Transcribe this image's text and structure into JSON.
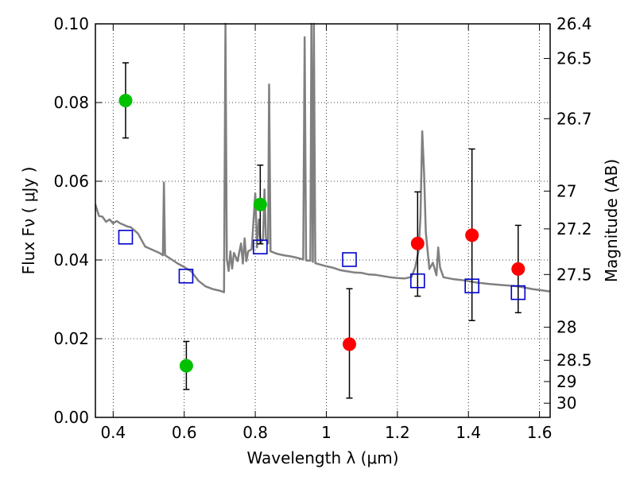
{
  "chart_data": {
    "type": "scatter",
    "xlabel": "Wavelength  λ (μm)",
    "ylabel": "Flux  Fν  ( μJy )",
    "y2label": "Magnitude (AB)",
    "xlim": [
      0.35,
      1.63
    ],
    "ylim": [
      0.0,
      0.1
    ],
    "grid": true,
    "x_ticks": [
      0.4,
      0.6,
      0.8,
      1.0,
      1.2,
      1.4,
      1.6
    ],
    "x_tick_labels": [
      "0.4",
      "0.6",
      "0.8",
      "1",
      "1.2",
      "1.4",
      "1.6"
    ],
    "y_ticks": [
      0.0,
      0.02,
      0.04,
      0.06,
      0.08,
      0.1
    ],
    "y_tick_labels": [
      "0.00",
      "0.02",
      "0.04",
      "0.06",
      "0.08",
      "0.10"
    ],
    "y2_ticks": [
      {
        "label": "26.4",
        "flux": 0.1
      },
      {
        "label": "26.5",
        "flux": 0.0912
      },
      {
        "label": "26.7",
        "flux": 0.0759
      },
      {
        "label": "27",
        "flux": 0.0575
      },
      {
        "label": "27.2",
        "flux": 0.0479
      },
      {
        "label": "27.5",
        "flux": 0.0363
      },
      {
        "label": "28",
        "flux": 0.0229
      },
      {
        "label": "28.5",
        "flux": 0.0145
      },
      {
        "label": "29",
        "flux": 0.0091
      },
      {
        "label": "30",
        "flux": 0.0036
      }
    ],
    "series": [
      {
        "color": "#00c000",
        "marker": "circle",
        "points": [
          {
            "x": 0.435,
            "y": 0.0805,
            "err_low": 0.071,
            "err_high": 0.0901
          },
          {
            "x": 0.606,
            "y": 0.0131,
            "err_low": 0.0071,
            "err_high": 0.0193
          },
          {
            "x": 0.814,
            "y": 0.0541,
            "err_low": 0.0441,
            "err_high": 0.0641
          }
        ]
      },
      {
        "color": "#ff0000",
        "marker": "circle",
        "points": [
          {
            "x": 1.065,
            "y": 0.0186,
            "err_low": 0.0049,
            "err_high": 0.0327
          },
          {
            "x": 1.257,
            "y": 0.0442,
            "err_low": 0.0308,
            "err_high": 0.0573
          },
          {
            "x": 1.41,
            "y": 0.0463,
            "err_low": 0.0246,
            "err_high": 0.0682
          },
          {
            "x": 1.54,
            "y": 0.0377,
            "err_low": 0.0266,
            "err_high": 0.0488
          }
        ]
      },
      {
        "color": "#0000cc",
        "marker": "open-square",
        "points": [
          {
            "x": 0.435,
            "y": 0.0458
          },
          {
            "x": 0.605,
            "y": 0.0359
          },
          {
            "x": 0.814,
            "y": 0.0433
          },
          {
            "x": 1.065,
            "y": 0.0401
          },
          {
            "x": 1.257,
            "y": 0.0347
          },
          {
            "x": 1.41,
            "y": 0.0334
          },
          {
            "x": 1.54,
            "y": 0.0317
          }
        ]
      },
      {
        "color": "#808080",
        "marker": "line",
        "points": [
          {
            "x": 0.35,
            "y": 0.0541
          },
          {
            "x": 0.36,
            "y": 0.0512
          },
          {
            "x": 0.37,
            "y": 0.051
          },
          {
            "x": 0.38,
            "y": 0.0497
          },
          {
            "x": 0.39,
            "y": 0.0503
          },
          {
            "x": 0.4,
            "y": 0.0493
          },
          {
            "x": 0.41,
            "y": 0.0499
          },
          {
            "x": 0.42,
            "y": 0.0493
          },
          {
            "x": 0.43,
            "y": 0.0489
          },
          {
            "x": 0.44,
            "y": 0.0485
          },
          {
            "x": 0.45,
            "y": 0.0483
          },
          {
            "x": 0.47,
            "y": 0.0467
          },
          {
            "x": 0.49,
            "y": 0.0434
          },
          {
            "x": 0.51,
            "y": 0.0426
          },
          {
            "x": 0.53,
            "y": 0.0418
          },
          {
            "x": 0.54,
            "y": 0.0412
          },
          {
            "x": 0.543,
            "y": 0.0597
          },
          {
            "x": 0.546,
            "y": 0.0412
          },
          {
            "x": 0.56,
            "y": 0.0404
          },
          {
            "x": 0.58,
            "y": 0.0392
          },
          {
            "x": 0.6,
            "y": 0.0382
          },
          {
            "x": 0.62,
            "y": 0.0371
          },
          {
            "x": 0.64,
            "y": 0.0347
          },
          {
            "x": 0.66,
            "y": 0.0333
          },
          {
            "x": 0.68,
            "y": 0.0326
          },
          {
            "x": 0.7,
            "y": 0.0322
          },
          {
            "x": 0.712,
            "y": 0.0318
          },
          {
            "x": 0.716,
            "y": 0.1
          },
          {
            "x": 0.72,
            "y": 0.0404
          },
          {
            "x": 0.725,
            "y": 0.0372
          },
          {
            "x": 0.73,
            "y": 0.0422
          },
          {
            "x": 0.735,
            "y": 0.0378
          },
          {
            "x": 0.74,
            "y": 0.0418
          },
          {
            "x": 0.75,
            "y": 0.0397
          },
          {
            "x": 0.76,
            "y": 0.0442
          },
          {
            "x": 0.765,
            "y": 0.0391
          },
          {
            "x": 0.77,
            "y": 0.0455
          },
          {
            "x": 0.775,
            "y": 0.0397
          },
          {
            "x": 0.78,
            "y": 0.0422
          },
          {
            "x": 0.79,
            "y": 0.0427
          },
          {
            "x": 0.8,
            "y": 0.0569
          },
          {
            "x": 0.805,
            "y": 0.0432
          },
          {
            "x": 0.81,
            "y": 0.0503
          },
          {
            "x": 0.815,
            "y": 0.0442
          },
          {
            "x": 0.822,
            "y": 0.0455
          },
          {
            "x": 0.826,
            "y": 0.0579
          },
          {
            "x": 0.83,
            "y": 0.0455
          },
          {
            "x": 0.836,
            "y": 0.0442
          },
          {
            "x": 0.839,
            "y": 0.0846
          },
          {
            "x": 0.843,
            "y": 0.0422
          },
          {
            "x": 0.86,
            "y": 0.0416
          },
          {
            "x": 0.88,
            "y": 0.0412
          },
          {
            "x": 0.9,
            "y": 0.0409
          },
          {
            "x": 0.92,
            "y": 0.0405
          },
          {
            "x": 0.935,
            "y": 0.0401
          },
          {
            "x": 0.939,
            "y": 0.0966
          },
          {
            "x": 0.943,
            "y": 0.0399
          },
          {
            "x": 0.955,
            "y": 0.0398
          },
          {
            "x": 0.958,
            "y": 0.1
          },
          {
            "x": 0.962,
            "y": 0.0395
          },
          {
            "x": 0.965,
            "y": 0.1
          },
          {
            "x": 0.969,
            "y": 0.0392
          },
          {
            "x": 0.98,
            "y": 0.0389
          },
          {
            "x": 1.0,
            "y": 0.0384
          },
          {
            "x": 1.02,
            "y": 0.038
          },
          {
            "x": 1.04,
            "y": 0.0374
          },
          {
            "x": 1.06,
            "y": 0.0371
          },
          {
            "x": 1.08,
            "y": 0.0368
          },
          {
            "x": 1.1,
            "y": 0.0367
          },
          {
            "x": 1.12,
            "y": 0.0363
          },
          {
            "x": 1.14,
            "y": 0.0362
          },
          {
            "x": 1.16,
            "y": 0.0359
          },
          {
            "x": 1.18,
            "y": 0.0356
          },
          {
            "x": 1.2,
            "y": 0.0354
          },
          {
            "x": 1.22,
            "y": 0.0353
          },
          {
            "x": 1.24,
            "y": 0.0357
          },
          {
            "x": 1.25,
            "y": 0.0381
          },
          {
            "x": 1.26,
            "y": 0.0425
          },
          {
            "x": 1.265,
            "y": 0.0512
          },
          {
            "x": 1.27,
            "y": 0.0727
          },
          {
            "x": 1.275,
            "y": 0.0622
          },
          {
            "x": 1.28,
            "y": 0.0471
          },
          {
            "x": 1.29,
            "y": 0.0377
          },
          {
            "x": 1.3,
            "y": 0.0393
          },
          {
            "x": 1.31,
            "y": 0.0361
          },
          {
            "x": 1.315,
            "y": 0.0432
          },
          {
            "x": 1.32,
            "y": 0.0381
          },
          {
            "x": 1.33,
            "y": 0.0356
          },
          {
            "x": 1.36,
            "y": 0.0351
          },
          {
            "x": 1.38,
            "y": 0.0349
          },
          {
            "x": 1.4,
            "y": 0.0346
          },
          {
            "x": 1.42,
            "y": 0.0343
          },
          {
            "x": 1.46,
            "y": 0.0339
          },
          {
            "x": 1.5,
            "y": 0.0336
          },
          {
            "x": 1.54,
            "y": 0.0333
          },
          {
            "x": 1.58,
            "y": 0.0326
          },
          {
            "x": 1.63,
            "y": 0.032
          }
        ]
      }
    ]
  }
}
